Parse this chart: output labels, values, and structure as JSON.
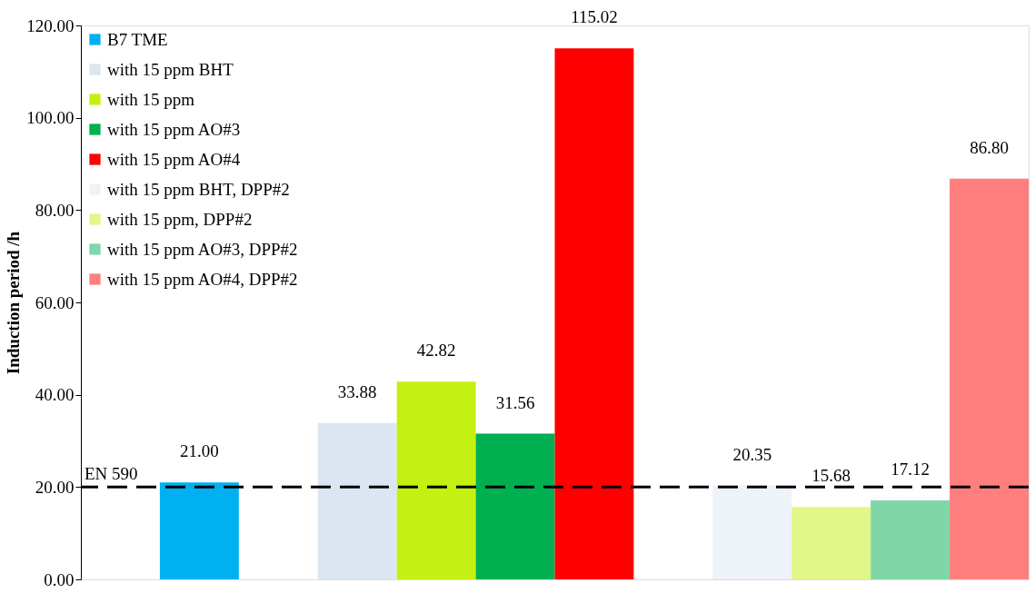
{
  "chart_data": {
    "type": "bar",
    "ylabel": "Induction period /h",
    "categories": [
      null,
      null,
      null,
      null,
      null,
      null,
      null,
      null,
      null,
      null,
      null,
      null
    ],
    "ylim": [
      0,
      120
    ],
    "yticks": [
      {
        "value": 0,
        "label": "0.00"
      },
      {
        "value": 20,
        "label": "20.00"
      },
      {
        "value": 40,
        "label": "40.00"
      },
      {
        "value": 60,
        "label": "60.00"
      },
      {
        "value": 80,
        "label": "80.00"
      },
      {
        "value": 100,
        "label": "100.00"
      },
      {
        "value": 120,
        "label": "120.00"
      }
    ],
    "tick_labels": "y",
    "grid": false,
    "legend": "top left",
    "series": [
      {
        "name": "B7 TME",
        "color": "#00b0f0",
        "values": [
          null,
          21.0,
          null,
          null,
          null,
          null,
          null,
          null,
          null,
          null,
          null,
          null
        ],
        "value_labels": [
          null,
          "21.00",
          null,
          null,
          null,
          null,
          null,
          null,
          null,
          null,
          null,
          null
        ]
      },
      {
        "name": "with 15 ppm BHT",
        "color": "#dce6f2",
        "values": [
          null,
          null,
          null,
          33.88,
          null,
          null,
          null,
          null,
          null,
          null,
          null,
          null
        ],
        "value_labels": [
          null,
          null,
          null,
          "33.88",
          null,
          null,
          null,
          null,
          null,
          null,
          null,
          null
        ]
      },
      {
        "name": "with 15 ppm",
        "color": "#c4f012",
        "values": [
          null,
          null,
          null,
          null,
          42.82,
          null,
          null,
          null,
          null,
          null,
          null,
          null
        ],
        "value_labels": [
          null,
          null,
          null,
          null,
          "42.82",
          null,
          null,
          null,
          null,
          null,
          null,
          null
        ]
      },
      {
        "name": "with 15 ppm AO#3",
        "color": "#00b050",
        "values": [
          null,
          null,
          null,
          null,
          null,
          31.56,
          null,
          null,
          null,
          null,
          null,
          null
        ],
        "value_labels": [
          null,
          null,
          null,
          null,
          null,
          "31.56",
          null,
          null,
          null,
          null,
          null,
          null
        ]
      },
      {
        "name": "with 15 ppm AO#4",
        "color": "#ff0000",
        "values": [
          null,
          null,
          null,
          null,
          null,
          null,
          115.02,
          null,
          null,
          null,
          null,
          null
        ],
        "value_labels": [
          null,
          null,
          null,
          null,
          null,
          null,
          "115.02",
          null,
          null,
          null,
          null,
          null
        ]
      },
      {
        "name": "with 15 ppm BHT, DPP#2",
        "color": "#eef2f9",
        "values": [
          null,
          null,
          null,
          null,
          null,
          null,
          null,
          null,
          20.35,
          null,
          null,
          null
        ],
        "value_labels": [
          null,
          null,
          null,
          null,
          null,
          null,
          null,
          null,
          "20.35",
          null,
          null,
          null
        ]
      },
      {
        "name": "with 15 ppm, DPP#2",
        "color": "#e1f788",
        "values": [
          null,
          null,
          null,
          null,
          null,
          null,
          null,
          null,
          null,
          15.68,
          null,
          null
        ],
        "value_labels": [
          null,
          null,
          null,
          null,
          null,
          null,
          null,
          null,
          null,
          "15.68",
          null,
          null
        ]
      },
      {
        "name": "with 15 ppm AO#3, DPP#2",
        "color": "#7fd7a7",
        "values": [
          null,
          null,
          null,
          null,
          null,
          null,
          null,
          null,
          null,
          null,
          17.12,
          null
        ],
        "value_labels": [
          null,
          null,
          null,
          null,
          null,
          null,
          null,
          null,
          null,
          null,
          "17.12",
          null
        ]
      },
      {
        "name": "with 15 ppm AO#4, DPP#2",
        "color": "#ff7f7f",
        "values": [
          null,
          null,
          null,
          null,
          null,
          null,
          null,
          null,
          null,
          null,
          null,
          86.8
        ],
        "value_labels": [
          null,
          null,
          null,
          null,
          null,
          null,
          null,
          null,
          null,
          null,
          null,
          "86.80"
        ]
      }
    ],
    "ref_lines": [
      {
        "axis": "y",
        "value": 20,
        "label": "EN 590",
        "color": "#000000",
        "line_style": "dashed"
      }
    ]
  }
}
